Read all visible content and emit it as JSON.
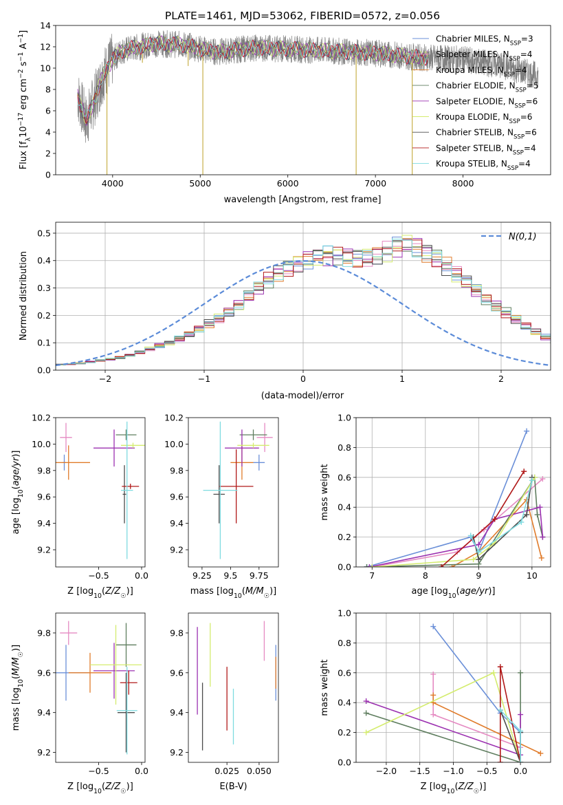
{
  "colors": {
    "Chabrier MILES": "#6a8fd8",
    "Salpeter MILES": "#e58ac2",
    "Kroupa MILES": "#e07b2a",
    "Chabrier ELODIE": "#5e7d5e",
    "Salpeter ELODIE": "#9b30b0",
    "Kroupa ELODIE": "#d4ec6e",
    "Chabrier STELIB": "#4a4a4a",
    "Salpeter STELIB": "#b01818",
    "Kroupa STELIB": "#7edbe0",
    "data": "#7f7f7f",
    "normal": "#5b8bd8"
  },
  "chart_data": [
    {
      "type": "line",
      "title": "PLATE=1461, MJD=53062, FIBERID=0572, z=0.056",
      "xlabel": "wavelength [Angstrom, rest frame]",
      "ylabel": "Flux [f_λ10^-17 erg cm^-2 s^-1 A^-1]",
      "xlim": [
        3350,
        9000
      ],
      "ylim": [
        0,
        14
      ],
      "xticks": [
        4000,
        5000,
        6000,
        7000,
        8000
      ],
      "yticks": [
        0,
        2,
        4,
        6,
        8,
        10,
        12,
        14
      ],
      "legend_position": "upper right",
      "legend": [
        {
          "label": "Chabrier MILES, N",
          "n": "3"
        },
        {
          "label": "Salpeter MILES, N",
          "n": "4"
        },
        {
          "label": "Kroupa MILES, N",
          "n": "4"
        },
        {
          "label": "Chabrier ELODIE, N",
          "n": "5"
        },
        {
          "label": "Salpeter ELODIE, N",
          "n": "6"
        },
        {
          "label": "Kroupa ELODIE, N",
          "n": "6"
        },
        {
          "label": "Chabrier STELIB, N",
          "n": "6"
        },
        {
          "label": "Salpeter STELIB, N",
          "n": "4"
        },
        {
          "label": "Kroupa STELIB, N",
          "n": "4"
        }
      ],
      "legend_sub": "SSP",
      "spectrum_shape": [
        [
          3600,
          7.5
        ],
        [
          3700,
          5.0
        ],
        [
          3800,
          7.2
        ],
        [
          3900,
          9.5
        ],
        [
          4000,
          10.8
        ],
        [
          4100,
          11.6
        ],
        [
          4300,
          12.0
        ],
        [
          4500,
          12.3
        ],
        [
          4800,
          12.2
        ],
        [
          5000,
          11.8
        ],
        [
          5200,
          11.5
        ],
        [
          5600,
          11.9
        ],
        [
          6000,
          11.8
        ],
        [
          6500,
          11.6
        ],
        [
          7000,
          11.4
        ],
        [
          7500,
          11.0
        ],
        [
          8000,
          10.8
        ],
        [
          8400,
          10.3
        ],
        [
          8860,
          9.3
        ]
      ],
      "spikes_down": [
        [
          3935,
          0
        ],
        [
          4340,
          10.5
        ],
        [
          4862,
          10.2
        ],
        [
          5030,
          0
        ],
        [
          6780,
          0
        ],
        [
          7420,
          0
        ]
      ]
    },
    {
      "type": "line",
      "xlabel": "(data-model)/error",
      "ylabel": "Normed distribution",
      "xlim": [
        -2.5,
        2.5
      ],
      "ylim": [
        0,
        0.54
      ],
      "xticks": [
        -2,
        -1,
        0,
        1,
        2
      ],
      "yticks": [
        0.0,
        0.1,
        0.2,
        0.3,
        0.4,
        0.5
      ],
      "grid": true,
      "normal_label": "N(0,1)",
      "bin_width": 0.1,
      "hist_shape": [
        0.02,
        0.022,
        0.025,
        0.03,
        0.035,
        0.04,
        0.046,
        0.054,
        0.065,
        0.078,
        0.09,
        0.1,
        0.115,
        0.13,
        0.15,
        0.17,
        0.19,
        0.215,
        0.24,
        0.27,
        0.3,
        0.33,
        0.355,
        0.375,
        0.39,
        0.405,
        0.415,
        0.42,
        0.42,
        0.415,
        0.41,
        0.415,
        0.42,
        0.435,
        0.45,
        0.46,
        0.45,
        0.43,
        0.41,
        0.38,
        0.35,
        0.32,
        0.29,
        0.26,
        0.235,
        0.21,
        0.185,
        0.16,
        0.14,
        0.12,
        0.105,
        0.09,
        0.078,
        0.067,
        0.057,
        0.048,
        0.04,
        0.034,
        0.029,
        0.025,
        0.022,
        0.02,
        0.018,
        0.016,
        0.015,
        0.014,
        0.013,
        0.012,
        0.011,
        0.01
      ],
      "hist_start": -2.5
    },
    {
      "type": "scatter",
      "xlabel": "Z [log10(Z/Z☉)]",
      "ylabel": "age  [log10(age/yr)]",
      "xlim": [
        -1.0,
        0.04
      ],
      "ylim": [
        9.07,
        10.2
      ],
      "xticks": [
        -0.5,
        0.0
      ],
      "yticks": [
        9.2,
        9.4,
        9.6,
        9.8,
        10.0,
        10.2
      ],
      "points": [
        {
          "m": "Chabrier MILES",
          "x": -0.9,
          "y": 9.86,
          "xerr": 0.02,
          "yerr": 0.06
        },
        {
          "m": "Salpeter MILES",
          "x": -0.88,
          "y": 10.05,
          "xerr": 0.07,
          "yerr": 0.11
        },
        {
          "m": "Kroupa MILES",
          "x": -0.85,
          "y": 9.86,
          "xerr": 0.25,
          "yerr": 0.13
        },
        {
          "m": "Chabrier ELODIE",
          "x": -0.18,
          "y": 10.07,
          "xerr": 0.12,
          "yerr": 0.04
        },
        {
          "m": "Salpeter ELODIE",
          "x": -0.32,
          "y": 9.97,
          "xerr": 0.24,
          "yerr": 0.14
        },
        {
          "m": "Kroupa ELODIE",
          "x": -0.1,
          "y": 9.99,
          "xerr": 0.14,
          "yerr": 0.02
        },
        {
          "m": "Chabrier STELIB",
          "x": -0.2,
          "y": 9.62,
          "xerr": 0.02,
          "yerr": 0.22
        },
        {
          "m": "Salpeter STELIB",
          "x": -0.13,
          "y": 9.68,
          "xerr": 0.1,
          "yerr": 0.02
        },
        {
          "m": "Kroupa STELIB",
          "x": -0.17,
          "y": 9.65,
          "xerr": 0.07,
          "yerr": 0.52
        }
      ]
    },
    {
      "type": "scatter",
      "xlabel": "mass [log10(M/M☉)]",
      "ylabel": "",
      "xlim": [
        9.13,
        9.92
      ],
      "ylim": [
        9.07,
        10.2
      ],
      "xticks": [
        9.25,
        9.5,
        9.75
      ],
      "yticks": [
        9.2,
        9.4,
        9.6,
        9.8,
        10.0,
        10.2
      ],
      "points": [
        {
          "m": "Chabrier MILES",
          "x": 9.75,
          "y": 9.86,
          "xerr": 0.05,
          "yerr": 0.06
        },
        {
          "m": "Salpeter MILES",
          "x": 9.8,
          "y": 10.05,
          "xerr": 0.07,
          "yerr": 0.11
        },
        {
          "m": "Kroupa MILES",
          "x": 9.6,
          "y": 9.86,
          "xerr": 0.1,
          "yerr": 0.13
        },
        {
          "m": "Chabrier ELODIE",
          "x": 9.7,
          "y": 10.07,
          "xerr": 0.12,
          "yerr": 0.04
        },
        {
          "m": "Salpeter ELODIE",
          "x": 9.6,
          "y": 9.97,
          "xerr": 0.15,
          "yerr": 0.14
        },
        {
          "m": "Kroupa ELODIE",
          "x": 9.7,
          "y": 9.99,
          "xerr": 0.14,
          "yerr": 0.02
        },
        {
          "m": "Chabrier STELIB",
          "x": 9.4,
          "y": 9.62,
          "xerr": 0.05,
          "yerr": 0.22
        },
        {
          "m": "Salpeter STELIB",
          "x": 9.55,
          "y": 9.68,
          "xerr": 0.15,
          "yerr": 0.28
        },
        {
          "m": "Kroupa STELIB",
          "x": 9.41,
          "y": 9.65,
          "xerr": 0.15,
          "yerr": 0.52
        }
      ]
    },
    {
      "type": "line",
      "xlabel": "age  [log10(age/yr)]",
      "ylabel": "mass weight",
      "xlim": [
        6.7,
        10.35
      ],
      "ylim": [
        0,
        1.0
      ],
      "xticks": [
        7,
        8,
        9,
        10
      ],
      "yticks": [
        0.0,
        0.2,
        0.4,
        0.6,
        0.8,
        1.0
      ],
      "grid": true,
      "series": [
        {
          "m": "Chabrier MILES",
          "x": [
            6.9,
            8.85,
            9.0,
            9.9
          ],
          "y": [
            0.0,
            0.2,
            0.1,
            0.91
          ]
        },
        {
          "m": "Salpeter MILES",
          "x": [
            7.0,
            8.6,
            9.1,
            10.2
          ],
          "y": [
            0.0,
            0.1,
            0.25,
            0.59
          ]
        },
        {
          "m": "Kroupa MILES",
          "x": [
            8.5,
            9.0,
            9.9,
            10.18
          ],
          "y": [
            0.0,
            0.1,
            0.45,
            0.06
          ]
        },
        {
          "m": "Chabrier ELODIE",
          "x": [
            6.9,
            9.0,
            10.05,
            10.1,
            10.2
          ],
          "y": [
            0.0,
            0.02,
            0.6,
            0.35,
            0.2
          ]
        },
        {
          "m": "Salpeter ELODIE",
          "x": [
            6.95,
            9.0,
            9.3,
            10.15,
            10.2
          ],
          "y": [
            0.0,
            0.15,
            0.32,
            0.4,
            0.2
          ]
        },
        {
          "m": "Kroupa ELODIE",
          "x": [
            7.0,
            8.9,
            9.3,
            10.05
          ],
          "y": [
            0.0,
            0.05,
            0.16,
            0.6
          ]
        },
        {
          "m": "Chabrier STELIB",
          "x": [
            8.9,
            9.0,
            9.9,
            10.0
          ],
          "y": [
            0.2,
            0.05,
            0.35,
            0.6
          ]
        },
        {
          "m": "Salpeter STELIB",
          "x": [
            8.3,
            9.3,
            9.85
          ],
          "y": [
            0.0,
            0.32,
            0.64
          ]
        },
        {
          "m": "Kroupa STELIB",
          "x": [
            8.85,
            9.0,
            9.8,
            10.0
          ],
          "y": [
            0.21,
            0.1,
            0.3,
            0.58
          ]
        }
      ]
    },
    {
      "type": "scatter",
      "xlabel": "Z [log10(Z/Z☉)]",
      "ylabel": "mass [log10(M/M☉)]",
      "xlim": [
        -1.0,
        0.04
      ],
      "ylim": [
        9.15,
        9.9
      ],
      "xticks": [
        -0.5,
        0.0
      ],
      "yticks": [
        9.2,
        9.4,
        9.6,
        9.8
      ],
      "points": [
        {
          "m": "Chabrier MILES",
          "x": -0.88,
          "y": 9.6,
          "xerr": 0.27,
          "yerr": 0.14
        },
        {
          "m": "Salpeter MILES",
          "x": -0.85,
          "y": 9.8,
          "xerr": 0.1,
          "yerr": 0.06
        },
        {
          "m": "Kroupa MILES",
          "x": -0.6,
          "y": 9.6,
          "xerr": 0.25,
          "yerr": 0.1
        },
        {
          "m": "Chabrier ELODIE",
          "x": -0.18,
          "y": 9.74,
          "xerr": 0.12,
          "yerr": 0.11
        },
        {
          "m": "Salpeter ELODIE",
          "x": -0.32,
          "y": 9.61,
          "xerr": 0.24,
          "yerr": 0.14
        },
        {
          "m": "Kroupa ELODIE",
          "x": -0.3,
          "y": 9.64,
          "xerr": 0.3,
          "yerr": 0.2
        },
        {
          "m": "Chabrier STELIB",
          "x": -0.18,
          "y": 9.4,
          "xerr": 0.1,
          "yerr": 0.2
        },
        {
          "m": "Salpeter STELIB",
          "x": -0.15,
          "y": 9.55,
          "xerr": 0.1,
          "yerr": 0.06
        },
        {
          "m": "Kroupa STELIB",
          "x": -0.17,
          "y": 9.41,
          "xerr": 0.12,
          "yerr": 0.22
        }
      ]
    },
    {
      "type": "scatter",
      "xlabel": "E(B-V)",
      "ylabel": "",
      "xlim": [
        -0.005,
        0.065
      ],
      "ylim": [
        9.15,
        9.9
      ],
      "xticks": [
        0.025,
        0.05
      ],
      "yticks": [
        9.2,
        9.4,
        9.6,
        9.8
      ],
      "points": [
        {
          "m": "Chabrier MILES",
          "x": 0.063,
          "y": 9.6,
          "xerr": 0.0,
          "yerr": 0.14
        },
        {
          "m": "Salpeter MILES",
          "x": 0.054,
          "y": 9.76,
          "xerr": 0.0,
          "yerr": 0.1
        },
        {
          "m": "Kroupa MILES",
          "x": 0.063,
          "y": 9.6,
          "xerr": 0.0,
          "yerr": 0.08
        },
        {
          "m": "Chabrier ELODIE",
          "x": 0.002,
          "y": 9.6,
          "xerr": 0.0,
          "yerr": 0.0
        },
        {
          "m": "Salpeter ELODIE",
          "x": 0.002,
          "y": 9.61,
          "xerr": 0.0,
          "yerr": 0.22
        },
        {
          "m": "Kroupa ELODIE",
          "x": 0.012,
          "y": 9.69,
          "xerr": 0.0,
          "yerr": 0.16
        },
        {
          "m": "Chabrier STELIB",
          "x": 0.006,
          "y": 9.38,
          "xerr": 0.0,
          "yerr": 0.17
        },
        {
          "m": "Salpeter STELIB",
          "x": 0.025,
          "y": 9.47,
          "xerr": 0.0,
          "yerr": 0.16
        },
        {
          "m": "Kroupa STELIB",
          "x": 0.03,
          "y": 9.38,
          "xerr": 0.0,
          "yerr": 0.14
        }
      ]
    },
    {
      "type": "line",
      "xlabel": "Z [log10(Z/Z☉)]",
      "ylabel": "mass weight",
      "xlim": [
        -2.45,
        0.45
      ],
      "ylim": [
        0,
        1.0
      ],
      "xticks": [
        -2.0,
        -1.5,
        -1.0,
        -0.5,
        0.0
      ],
      "yticks": [
        0.0,
        0.2,
        0.4,
        0.6,
        0.8,
        1.0
      ],
      "grid": true,
      "series": [
        {
          "m": "Chabrier MILES",
          "x": [
            -1.3,
            -0.3,
            0.0
          ],
          "y": [
            0.91,
            0.33,
            0.2
          ]
        },
        {
          "m": "Salpeter MILES",
          "x": [
            -1.3,
            -1.3,
            0.0
          ],
          "y": [
            0.59,
            0.32,
            0.1
          ]
        },
        {
          "m": "Kroupa MILES",
          "x": [
            -1.3,
            -1.3,
            0.3
          ],
          "y": [
            0.45,
            0.4,
            0.06
          ]
        },
        {
          "m": "Chabrier ELODIE",
          "x": [
            -2.3,
            0.0,
            0.0
          ],
          "y": [
            0.33,
            0.0,
            0.6
          ]
        },
        {
          "m": "Salpeter ELODIE",
          "x": [
            -2.3,
            0.0,
            0.0
          ],
          "y": [
            0.41,
            0.05,
            0.32
          ]
        },
        {
          "m": "Kroupa ELODIE",
          "x": [
            -2.3,
            -0.4,
            0.0
          ],
          "y": [
            0.2,
            0.6,
            0.0
          ]
        },
        {
          "m": "Chabrier STELIB",
          "x": [
            -0.3,
            0.0,
            0.0
          ],
          "y": [
            0.35,
            0.0,
            0.2
          ]
        },
        {
          "m": "Salpeter STELIB",
          "x": [
            -0.3,
            -0.3,
            0.0
          ],
          "y": [
            0.0,
            0.64,
            0.0
          ]
        },
        {
          "m": "Kroupa STELIB",
          "x": [
            -0.3,
            0.0,
            0.0
          ],
          "y": [
            0.35,
            0.21,
            0.0
          ]
        }
      ]
    }
  ]
}
